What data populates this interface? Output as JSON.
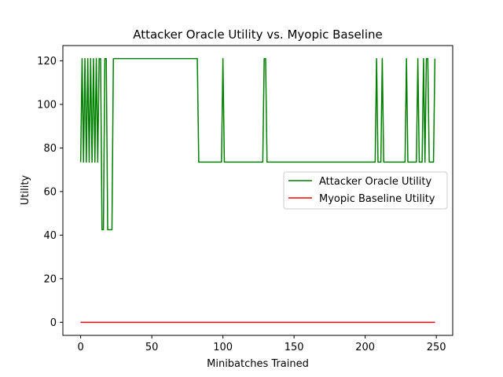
{
  "chart_data": {
    "type": "line",
    "title": "Attacker Oracle Utility vs. Myopic Baseline",
    "xlabel": "Minibatches Trained",
    "ylabel": "Utility",
    "xlim": [
      -12.5,
      261.5
    ],
    "ylim": [
      -6,
      127
    ],
    "xticks": [
      0,
      50,
      100,
      150,
      200,
      250
    ],
    "yticks": [
      0,
      20,
      40,
      60,
      80,
      100,
      120
    ],
    "grid": false,
    "legend_position": "center-right",
    "series": [
      {
        "name": "Attacker Oracle Utility",
        "color": "#008000",
        "x": [
          0,
          1,
          2,
          3,
          4,
          5,
          6,
          7,
          8,
          9,
          10,
          11,
          12,
          13,
          14,
          15,
          16,
          17,
          18,
          19,
          20,
          21,
          22,
          23,
          24,
          82,
          83,
          99,
          100,
          101,
          128,
          129,
          130,
          131,
          207,
          208,
          209,
          211,
          212,
          213,
          228,
          229,
          230,
          236,
          237,
          238,
          240,
          241,
          242,
          243,
          244,
          245,
          246,
          247,
          248,
          249
        ],
        "y": [
          73.5,
          121,
          73.5,
          121,
          73.5,
          121,
          73.5,
          121,
          73.5,
          121,
          73.5,
          121,
          73.5,
          121,
          121,
          42.5,
          42.5,
          121,
          121,
          42.5,
          42.5,
          42.5,
          42.5,
          121,
          121,
          121,
          73.5,
          73.5,
          121,
          73.5,
          73.5,
          121,
          121,
          73.5,
          73.5,
          121,
          73.5,
          73.5,
          121,
          73.5,
          73.5,
          121,
          73.5,
          73.5,
          121,
          73.5,
          73.5,
          121,
          73.5,
          121,
          121,
          73.5,
          73.5,
          73.5,
          73.5,
          121
        ]
      },
      {
        "name": "Myopic Baseline Utility",
        "color": "#ff0000",
        "x": [
          0,
          249
        ],
        "y": [
          0,
          0
        ]
      }
    ]
  }
}
